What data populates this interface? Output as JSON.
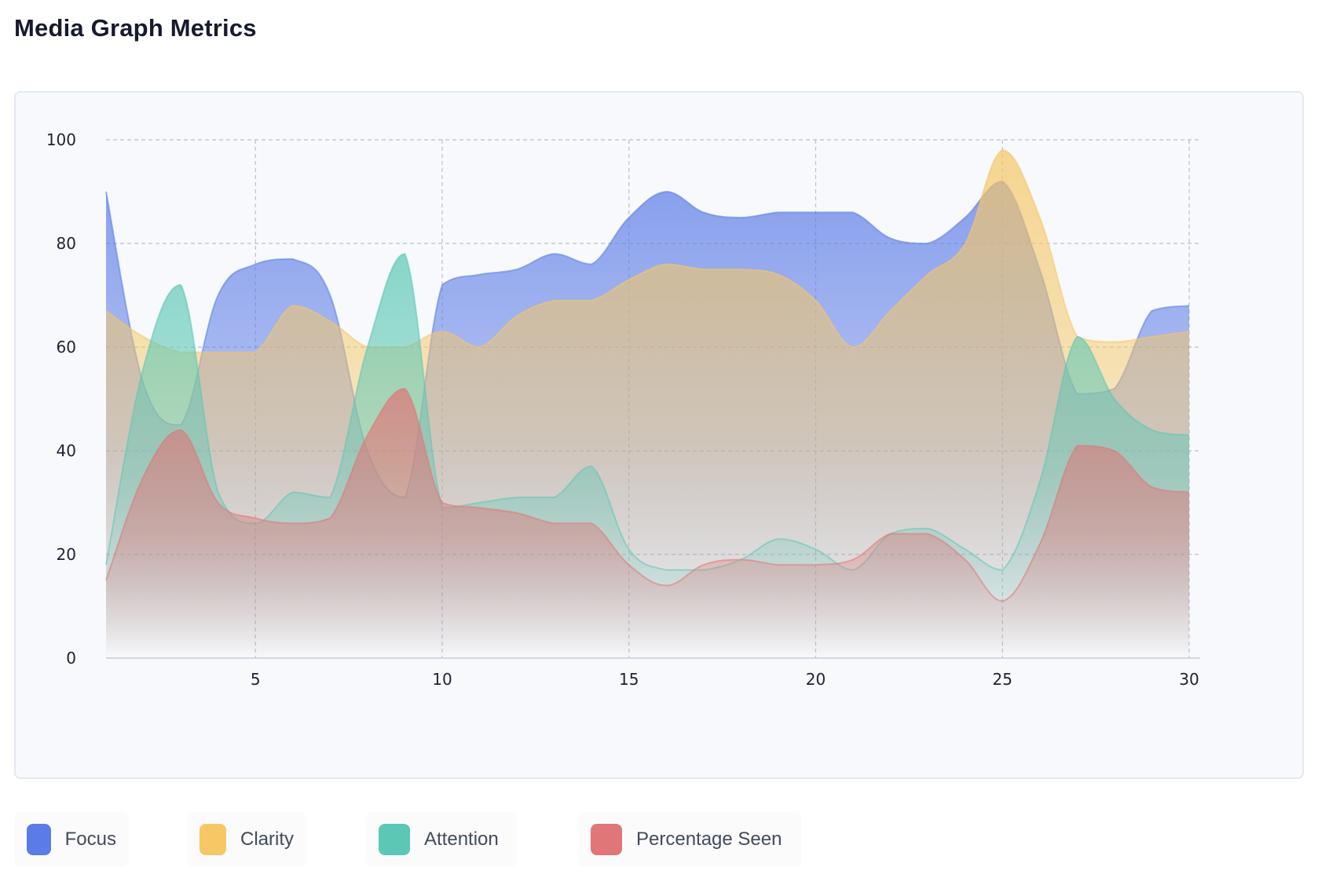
{
  "page": {
    "title": "Media Graph Metrics"
  },
  "chart_data": {
    "type": "area",
    "title": "Media Graph Metrics",
    "xlabel": "",
    "ylabel": "",
    "xlim": [
      1,
      30
    ],
    "ylim": [
      0,
      100
    ],
    "x_ticks": [
      5,
      10,
      15,
      20,
      25,
      30
    ],
    "y_ticks": [
      0,
      20,
      40,
      60,
      80,
      100
    ],
    "grid": true,
    "legend_position": "bottom-left",
    "x": [
      1,
      2,
      3,
      4,
      5,
      6,
      7,
      8,
      9,
      10,
      11,
      12,
      13,
      14,
      15,
      16,
      17,
      18,
      19,
      20,
      21,
      22,
      23,
      24,
      25,
      26,
      27,
      28,
      29,
      30
    ],
    "series": [
      {
        "name": "Focus",
        "color": "#5b7be6",
        "values": [
          90,
          53,
          45,
          70,
          76,
          77,
          70,
          40,
          31,
          72,
          74,
          75,
          78,
          76,
          85,
          90,
          86,
          85,
          86,
          86,
          86,
          81,
          80,
          85,
          92,
          75,
          51,
          52,
          67,
          68
        ]
      },
      {
        "name": "Clarity",
        "color": "#f6c765",
        "values": [
          67,
          62,
          59,
          59,
          59,
          68,
          65,
          60,
          60,
          63,
          60,
          66,
          69,
          69,
          73,
          76,
          75,
          75,
          74,
          69,
          60,
          67,
          74,
          80,
          98,
          85,
          62,
          61,
          62,
          63
        ]
      },
      {
        "name": "Attention",
        "color": "#5cc7b5",
        "values": [
          18,
          56,
          72,
          32,
          26,
          32,
          31,
          60,
          78,
          29,
          30,
          31,
          31,
          37,
          21,
          17,
          17,
          19,
          23,
          21,
          17,
          24,
          25,
          21,
          17,
          34,
          62,
          50,
          44,
          43
        ]
      },
      {
        "name": "Percentage Seen",
        "color": "#e07677",
        "values": [
          15,
          35,
          44,
          30,
          27,
          26,
          27,
          43,
          52,
          30,
          29,
          28,
          26,
          26,
          18,
          14,
          18,
          19,
          18,
          18,
          19,
          24,
          24,
          19,
          11,
          22,
          41,
          40,
          33,
          32
        ]
      }
    ]
  },
  "legend": {
    "items": [
      {
        "label": "Focus",
        "color": "#5b7be6"
      },
      {
        "label": "Clarity",
        "color": "#f6c765"
      },
      {
        "label": "Attention",
        "color": "#5cc7b5"
      },
      {
        "label": "Percentage Seen",
        "color": "#e07677"
      }
    ]
  }
}
